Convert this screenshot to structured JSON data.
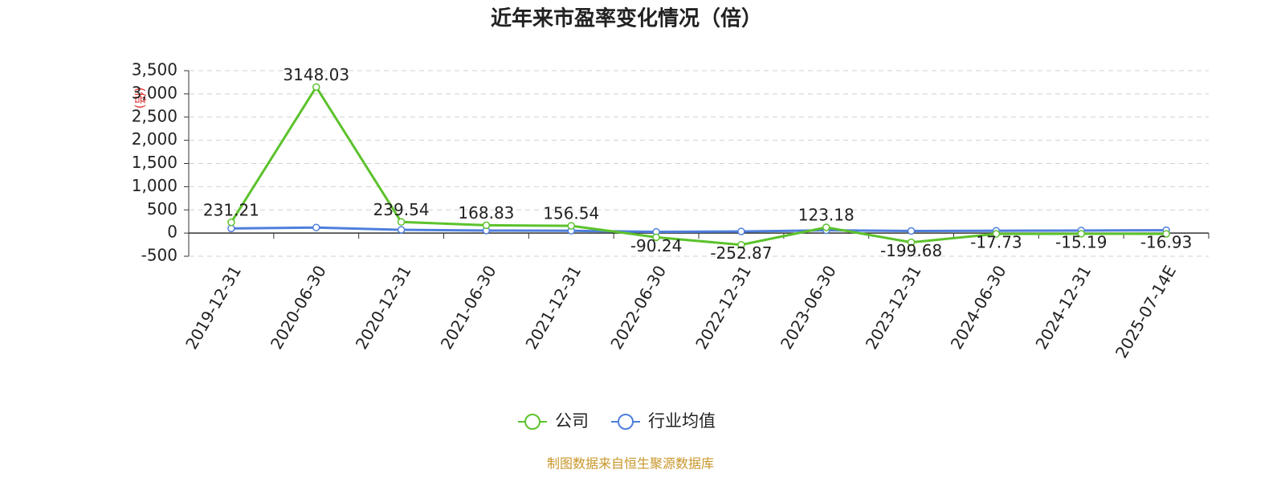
{
  "chart_data": {
    "type": "line",
    "title": "近年来市盈率变化情况（倍）",
    "y_axis_label": "(倍)",
    "categories": [
      "2019-12-31",
      "2020-06-30",
      "2020-12-31",
      "2021-06-30",
      "2021-12-31",
      "2022-06-30",
      "2022-12-31",
      "2023-06-30",
      "2023-12-31",
      "2024-06-30",
      "2024-12-31",
      "2025-07-14E"
    ],
    "series": [
      {
        "name": "公司",
        "color": "#5cc22c",
        "values": [
          231.21,
          3148.03,
          239.54,
          168.83,
          156.54,
          -90.24,
          -252.87,
          123.18,
          -199.68,
          -17.73,
          -15.19,
          -16.93
        ]
      },
      {
        "name": "行业均值",
        "color": "#4f7fdc",
        "values": [
          100,
          120,
          70,
          55,
          50,
          25,
          35,
          60,
          45,
          50,
          55,
          60
        ]
      }
    ],
    "ylim": [
      -500,
      3500
    ],
    "yticks": [
      -500,
      0,
      {
        "value": 500,
        "label": "500"
      },
      {
        "value": 1000,
        "label": "1,000"
      },
      {
        "value": 1500,
        "label": "1,500"
      },
      {
        "value": 2000,
        "label": "2,000"
      },
      {
        "value": 2500,
        "label": "2,500"
      },
      {
        "value": 3000,
        "label": "3,000"
      },
      {
        "value": 3500,
        "label": "3,500"
      }
    ],
    "grid": true,
    "source": "制图数据来自恒生聚源数据库"
  }
}
